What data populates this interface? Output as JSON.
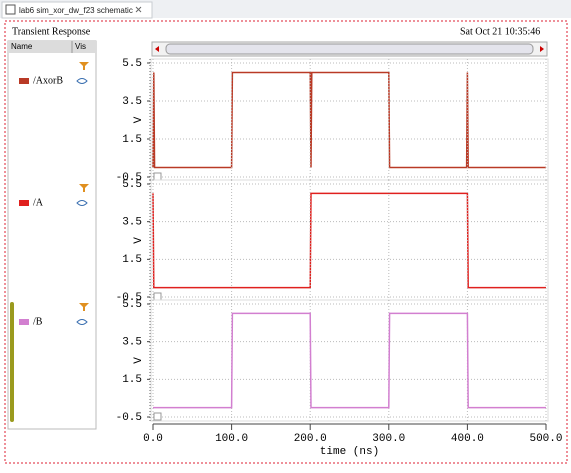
{
  "tab": {
    "title": "lab6 sim_xor_dw_f23 schematic"
  },
  "header": {
    "title": "Transient Response",
    "date": "Sat Oct 21 10:35:46"
  },
  "sidebar": {
    "columns": [
      "Name",
      "Vis"
    ]
  },
  "chart_data": [
    {
      "type": "line",
      "ylabel": "V",
      "x": [
        0,
        1,
        2,
        100,
        101,
        200,
        201,
        202,
        300,
        301,
        399,
        400,
        401,
        500
      ],
      "series": [
        {
          "name": "/AxorB",
          "color": "#b93a26",
          "values": [
            0,
            5,
            0,
            0,
            5,
            5,
            0,
            5,
            5,
            0,
            0,
            5,
            0,
            0
          ]
        }
      ],
      "xlim": [
        0,
        500
      ],
      "ylim": [
        -0.5,
        5.5
      ],
      "yticks": [
        -0.5,
        1.5,
        3.5,
        5.5
      ],
      "grid": true
    },
    {
      "type": "line",
      "ylabel": "V",
      "x": [
        0,
        1,
        200,
        201,
        400,
        401,
        500
      ],
      "series": [
        {
          "name": "/A",
          "color": "#e0201e",
          "values": [
            5,
            0,
            0,
            5,
            5,
            0,
            0
          ]
        }
      ],
      "xlim": [
        0,
        500
      ],
      "ylim": [
        -0.5,
        5.5
      ],
      "yticks": [
        -0.5,
        1.5,
        3.5,
        5.5
      ],
      "grid": true
    },
    {
      "type": "line",
      "ylabel": "V",
      "xlabel": "time (ns)",
      "x": [
        0,
        100,
        101,
        200,
        201,
        300,
        301,
        400,
        401,
        500
      ],
      "series": [
        {
          "name": "/B",
          "color": "#d27fd0",
          "values": [
            0,
            0,
            5,
            5,
            0,
            0,
            5,
            5,
            0,
            0
          ]
        }
      ],
      "xlim": [
        0,
        500
      ],
      "ylim": [
        -0.5,
        5.5
      ],
      "yticks": [
        -0.5,
        1.5,
        3.5,
        5.5
      ],
      "xticks": [
        {
          "value": 0,
          "label": "0.0"
        },
        {
          "value": 100,
          "label": "100.0"
        },
        {
          "value": 200,
          "label": "200.0"
        },
        {
          "value": 300,
          "label": "300.0"
        },
        {
          "value": 400,
          "label": "400.0"
        },
        {
          "value": 500,
          "label": "500.0"
        }
      ],
      "grid": true
    }
  ]
}
